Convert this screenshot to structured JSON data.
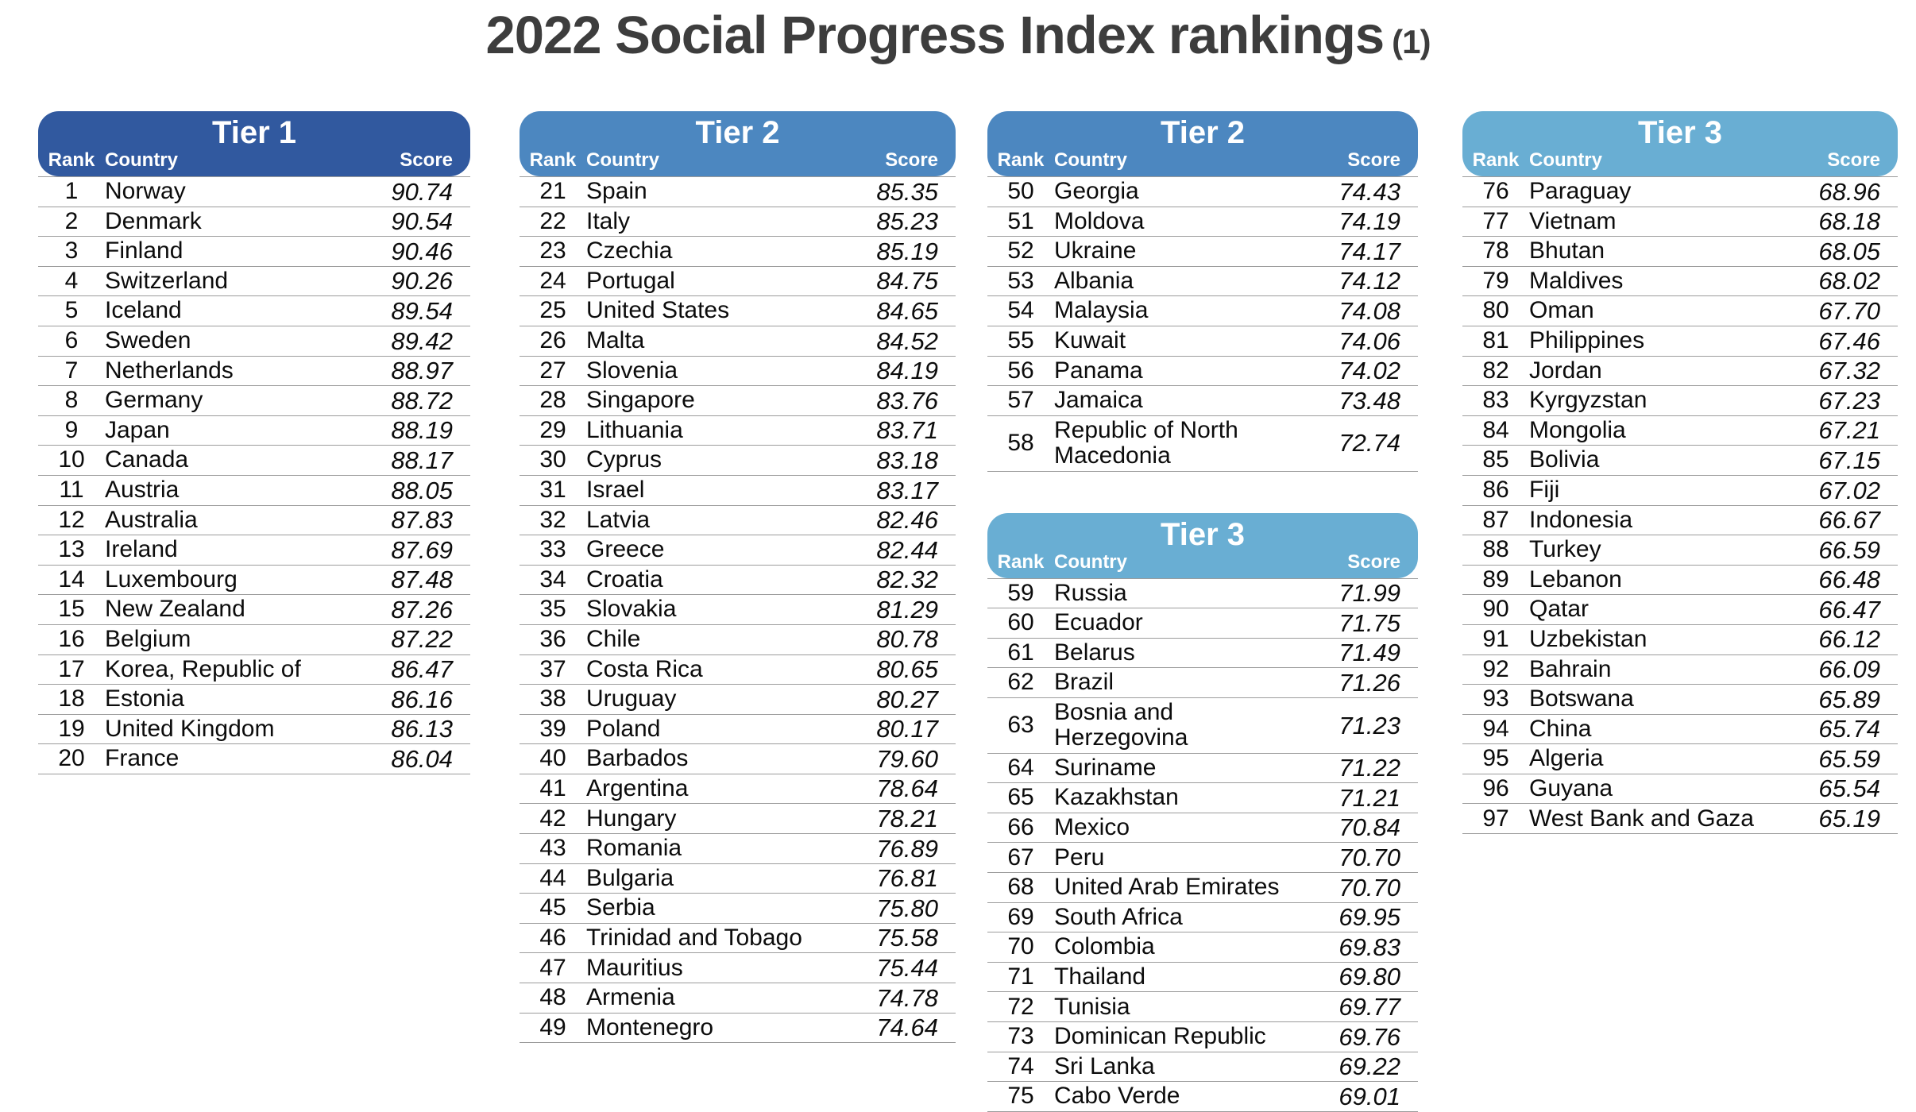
{
  "title": {
    "main": "2022 Social Progress Index rankings",
    "suffix": "(1)"
  },
  "headers": {
    "rank": "Rank",
    "country": "Country",
    "score": "Score"
  },
  "colors": {
    "tier1": "#31599f",
    "tier2": "#4c87c0",
    "tier3": "#69aed3",
    "title_text": "#3d3d3d",
    "row_text": "#0c0c0c",
    "row_line": "#9c9c9c"
  },
  "chart_data": {
    "type": "table",
    "title": "2022 Social Progress Index rankings (1)",
    "columns": [
      "Rank",
      "Country",
      "Score"
    ],
    "tables": [
      {
        "tier": "Tier 1",
        "color": "tier1",
        "layout_column": 1,
        "rows": [
          [
            1,
            "Norway",
            "90.74"
          ],
          [
            2,
            "Denmark",
            "90.54"
          ],
          [
            3,
            "Finland",
            "90.46"
          ],
          [
            4,
            "Switzerland",
            "90.26"
          ],
          [
            5,
            "Iceland",
            "89.54"
          ],
          [
            6,
            "Sweden",
            "89.42"
          ],
          [
            7,
            "Netherlands",
            "88.97"
          ],
          [
            8,
            "Germany",
            "88.72"
          ],
          [
            9,
            "Japan",
            "88.19"
          ],
          [
            10,
            "Canada",
            "88.17"
          ],
          [
            11,
            "Austria",
            "88.05"
          ],
          [
            12,
            "Australia",
            "87.83"
          ],
          [
            13,
            "Ireland",
            "87.69"
          ],
          [
            14,
            "Luxembourg",
            "87.48"
          ],
          [
            15,
            "New Zealand",
            "87.26"
          ],
          [
            16,
            "Belgium",
            "87.22"
          ],
          [
            17,
            "Korea, Republic of",
            "86.47"
          ],
          [
            18,
            "Estonia",
            "86.16"
          ],
          [
            19,
            "United Kingdom",
            "86.13"
          ],
          [
            20,
            "France",
            "86.04"
          ]
        ]
      },
      {
        "tier": "Tier 2",
        "color": "tier2",
        "layout_column": 2,
        "rows": [
          [
            21,
            "Spain",
            "85.35"
          ],
          [
            22,
            "Italy",
            "85.23"
          ],
          [
            23,
            "Czechia",
            "85.19"
          ],
          [
            24,
            "Portugal",
            "84.75"
          ],
          [
            25,
            "United States",
            "84.65"
          ],
          [
            26,
            "Malta",
            "84.52"
          ],
          [
            27,
            "Slovenia",
            "84.19"
          ],
          [
            28,
            "Singapore",
            "83.76"
          ],
          [
            29,
            "Lithuania",
            "83.71"
          ],
          [
            30,
            "Cyprus",
            "83.18"
          ],
          [
            31,
            "Israel",
            "83.17"
          ],
          [
            32,
            "Latvia",
            "82.46"
          ],
          [
            33,
            "Greece",
            "82.44"
          ],
          [
            34,
            "Croatia",
            "82.32"
          ],
          [
            35,
            "Slovakia",
            "81.29"
          ],
          [
            36,
            "Chile",
            "80.78"
          ],
          [
            37,
            "Costa Rica",
            "80.65"
          ],
          [
            38,
            "Uruguay",
            "80.27"
          ],
          [
            39,
            "Poland",
            "80.17"
          ],
          [
            40,
            "Barbados",
            "79.60"
          ],
          [
            41,
            "Argentina",
            "78.64"
          ],
          [
            42,
            "Hungary",
            "78.21"
          ],
          [
            43,
            "Romania",
            "76.89"
          ],
          [
            44,
            "Bulgaria",
            "76.81"
          ],
          [
            45,
            "Serbia",
            "75.80"
          ],
          [
            46,
            "Trinidad and Tobago",
            "75.58"
          ],
          [
            47,
            "Mauritius",
            "75.44"
          ],
          [
            48,
            "Armenia",
            "74.78"
          ],
          [
            49,
            "Montenegro",
            "74.64"
          ]
        ]
      },
      {
        "tier": "Tier 2",
        "color": "tier2",
        "layout_column": 3,
        "rows": [
          [
            50,
            "Georgia",
            "74.43"
          ],
          [
            51,
            "Moldova",
            "74.19"
          ],
          [
            52,
            "Ukraine",
            "74.17"
          ],
          [
            53,
            "Albania",
            "74.12"
          ],
          [
            54,
            "Malaysia",
            "74.08"
          ],
          [
            55,
            "Kuwait",
            "74.06"
          ],
          [
            56,
            "Panama",
            "74.02"
          ],
          [
            57,
            "Jamaica",
            "73.48"
          ],
          [
            58,
            "Republic of North Macedonia",
            "72.74"
          ]
        ]
      },
      {
        "tier": "Tier 3",
        "color": "tier3",
        "layout_column": 3,
        "rows": [
          [
            59,
            "Russia",
            "71.99"
          ],
          [
            60,
            "Ecuador",
            "71.75"
          ],
          [
            61,
            "Belarus",
            "71.49"
          ],
          [
            62,
            "Brazil",
            "71.26"
          ],
          [
            63,
            "Bosnia and Herzegovina",
            "71.23"
          ],
          [
            64,
            "Suriname",
            "71.22"
          ],
          [
            65,
            "Kazakhstan",
            "71.21"
          ],
          [
            66,
            "Mexico",
            "70.84"
          ],
          [
            67,
            "Peru",
            "70.70"
          ],
          [
            68,
            "United Arab Emirates",
            "70.70"
          ],
          [
            69,
            "South Africa",
            "69.95"
          ],
          [
            70,
            "Colombia",
            "69.83"
          ],
          [
            71,
            "Thailand",
            "69.80"
          ],
          [
            72,
            "Tunisia",
            "69.77"
          ],
          [
            73,
            "Dominican Republic",
            "69.76"
          ],
          [
            74,
            "Sri Lanka",
            "69.22"
          ],
          [
            75,
            "Cabo Verde",
            "69.01"
          ]
        ]
      },
      {
        "tier": "Tier 3",
        "color": "tier3",
        "layout_column": 4,
        "rows": [
          [
            76,
            "Paraguay",
            "68.96"
          ],
          [
            77,
            "Vietnam",
            "68.18"
          ],
          [
            78,
            "Bhutan",
            "68.05"
          ],
          [
            79,
            "Maldives",
            "68.02"
          ],
          [
            80,
            "Oman",
            "67.70"
          ],
          [
            81,
            "Philippines",
            "67.46"
          ],
          [
            82,
            "Jordan",
            "67.32"
          ],
          [
            83,
            "Kyrgyzstan",
            "67.23"
          ],
          [
            84,
            "Mongolia",
            "67.21"
          ],
          [
            85,
            "Bolivia",
            "67.15"
          ],
          [
            86,
            "Fiji",
            "67.02"
          ],
          [
            87,
            "Indonesia",
            "66.67"
          ],
          [
            88,
            "Turkey",
            "66.59"
          ],
          [
            89,
            "Lebanon",
            "66.48"
          ],
          [
            90,
            "Qatar",
            "66.47"
          ],
          [
            91,
            "Uzbekistan",
            "66.12"
          ],
          [
            92,
            "Bahrain",
            "66.09"
          ],
          [
            93,
            "Botswana",
            "65.89"
          ],
          [
            94,
            "China",
            "65.74"
          ],
          [
            95,
            "Algeria",
            "65.59"
          ],
          [
            96,
            "Guyana",
            "65.54"
          ],
          [
            97,
            "West Bank and Gaza",
            "65.19"
          ]
        ]
      }
    ]
  }
}
